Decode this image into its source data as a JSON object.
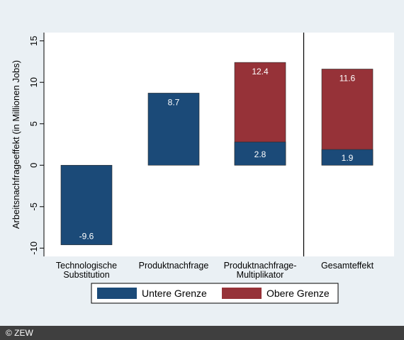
{
  "credit": "© ZEW",
  "colors": {
    "lower": "#1b4a78",
    "upper": "#963238",
    "background": "#eaf0f4",
    "plot_background": "#ffffff"
  },
  "chart_data": {
    "type": "bar",
    "stacked": true,
    "ylabel": "Arbeitsnachfrageeffekt (in Millionen Jobs)",
    "ylim": [
      -11,
      16
    ],
    "yticks": [
      -10,
      -5,
      0,
      5,
      10,
      15
    ],
    "ytick_labels": [
      "-10",
      "-5",
      "0",
      "5",
      "10",
      "15"
    ],
    "categories": [
      [
        "Technologische",
        "Substitution"
      ],
      [
        "Produktnachfrage"
      ],
      [
        "Produktnachfrage-",
        "Multiplikator"
      ],
      [
        "Gesamteffekt"
      ]
    ],
    "series": [
      {
        "name": "Untere Grenze",
        "color_key": "lower",
        "values": [
          -9.6,
          8.7,
          2.8,
          1.9
        ],
        "labels": [
          "-9.6",
          "8.7",
          "2.8",
          "1.9"
        ]
      },
      {
        "name": "Obere Grenze",
        "color_key": "upper",
        "values": [
          null,
          null,
          12.4,
          11.6
        ],
        "labels": [
          null,
          null,
          "12.4",
          "11.6"
        ]
      }
    ],
    "separator_after_category": 2,
    "legend_position": "bottom",
    "grid": false
  }
}
